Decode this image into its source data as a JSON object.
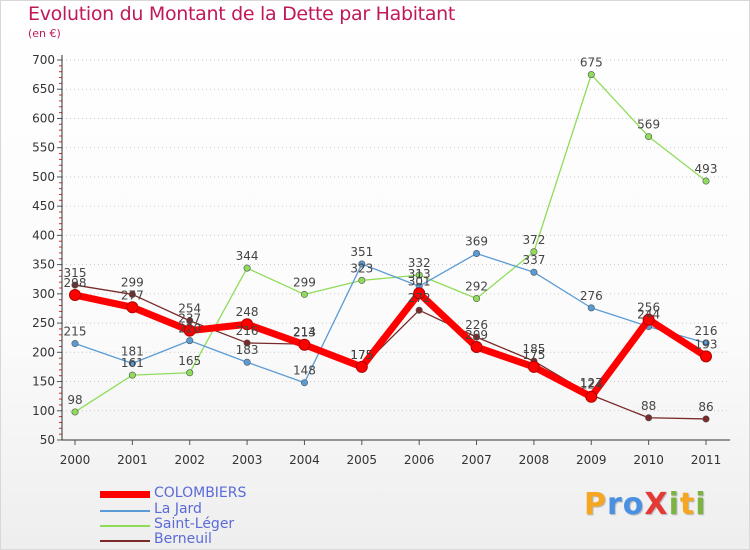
{
  "header": {
    "title": "Evolution du Montant de la Dette par Habitant",
    "unit": "(en €)"
  },
  "chart_data": {
    "type": "line",
    "title": "Evolution du Montant de la Dette par Habitant",
    "ylabel": "(en €)",
    "xlabel": "",
    "x": [
      "2000",
      "2001",
      "2002",
      "2003",
      "2004",
      "2005",
      "2006",
      "2007",
      "2008",
      "2009",
      "2010",
      "2011"
    ],
    "ylim": [
      50,
      700
    ],
    "yticks": [
      50,
      100,
      150,
      200,
      250,
      300,
      350,
      400,
      450,
      500,
      550,
      600,
      650,
      700
    ],
    "grid": "horizontal dotted",
    "legend_position": "bottom-left",
    "series": [
      {
        "name": "COLOMBIERS",
        "color": "#ff0000",
        "values": [
          298,
          277,
          237,
          248,
          213,
          175,
          301,
          209,
          175,
          124,
          256,
          193
        ]
      },
      {
        "name": "La Jard",
        "color": "#5b9bd5",
        "values": [
          215,
          181,
          220,
          183,
          148,
          351,
          313,
          369,
          337,
          276,
          244,
          216
        ]
      },
      {
        "name": "Saint-Léger",
        "color": "#8fdc5a",
        "values": [
          98,
          161,
          165,
          344,
          299,
          323,
          332,
          292,
          372,
          675,
          569,
          493
        ]
      },
      {
        "name": "Berneuil",
        "color": "#7a2a2a",
        "values": [
          315,
          299,
          254,
          216,
          214,
          175,
          272,
          226,
          185,
          127,
          88,
          86
        ]
      }
    ]
  },
  "logo": {
    "text": "ProXiti"
  }
}
